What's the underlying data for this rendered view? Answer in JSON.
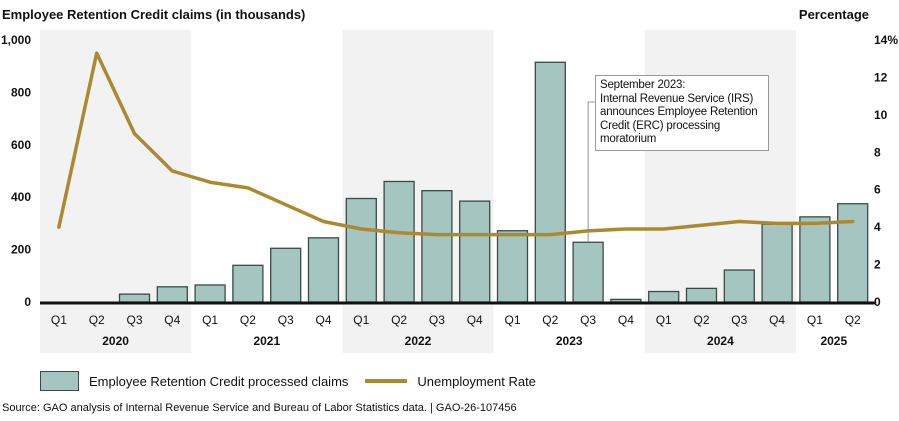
{
  "chart_data": {
    "type": "bar",
    "title": "Employee Retention Credit claims (in thousands)",
    "ylabel": "Employee Retention Credit claims (in thousands)",
    "y2label": "Percentage",
    "ylim": [
      0,
      1000
    ],
    "y2lim": [
      0,
      14
    ],
    "yticks": [
      "0",
      "200",
      "400",
      "600",
      "800",
      "1,000"
    ],
    "y2ticks": [
      "0",
      "2",
      "4",
      "6",
      "8",
      "10",
      "12",
      "14%"
    ],
    "categories": [
      "Q1",
      "Q2",
      "Q3",
      "Q4",
      "Q1",
      "Q2",
      "Q3",
      "Q4",
      "Q1",
      "Q2",
      "Q3",
      "Q4",
      "Q1",
      "Q2",
      "Q3",
      "Q4",
      "Q1",
      "Q2",
      "Q3",
      "Q4",
      "Q1",
      "Q2"
    ],
    "years": [
      {
        "label": "2020",
        "quarters": 4,
        "shaded": true
      },
      {
        "label": "2021",
        "quarters": 4,
        "shaded": false
      },
      {
        "label": "2022",
        "quarters": 4,
        "shaded": true
      },
      {
        "label": "2023",
        "quarters": 4,
        "shaded": false
      },
      {
        "label": "2024",
        "quarters": 4,
        "shaded": true
      },
      {
        "label": "2025",
        "quarters": 2,
        "shaded": false
      }
    ],
    "series": [
      {
        "name": "Employee Retention Credit processed claims",
        "type": "bar",
        "axis": "left",
        "color": "#a5c5c0",
        "values": [
          0,
          0,
          30,
          58,
          65,
          140,
          205,
          245,
          395,
          460,
          425,
          385,
          272,
          915,
          228,
          10,
          40,
          52,
          122,
          297,
          325,
          375
        ]
      },
      {
        "name": "Unemployment Rate",
        "type": "line",
        "axis": "right",
        "color": "#ab8a2f",
        "values": [
          4.0,
          13.3,
          9.0,
          7.0,
          6.4,
          6.1,
          5.2,
          4.3,
          3.9,
          3.7,
          3.6,
          3.6,
          3.6,
          3.6,
          3.8,
          3.9,
          3.9,
          4.1,
          4.3,
          4.2,
          4.2,
          4.3
        ]
      }
    ],
    "annotations": [
      {
        "target": "2023 Q3",
        "text": "September 2023: Internal Revenue Service (IRS) announces Employee Retention Credit (ERC) processing moratorium"
      }
    ],
    "legend": "bottom",
    "grid": false
  },
  "annotation": {
    "lines": [
      "September 2023:",
      "Internal Revenue Service (IRS)",
      "announces Employee Retention",
      "Credit (ERC) processing moratorium"
    ]
  },
  "legend": {
    "bars_label": "Employee Retention Credit processed claims",
    "line_label": "Unemployment Rate"
  },
  "source": "Source: GAO analysis of Internal Revenue Service and Bureau of Labor Statistics data.  |  GAO-26-107456",
  "colors": {
    "bar": "#a5c5c0",
    "bar_border": "#3a4a48",
    "line": "#ab8a2f",
    "shade": "#f2f2f2"
  }
}
